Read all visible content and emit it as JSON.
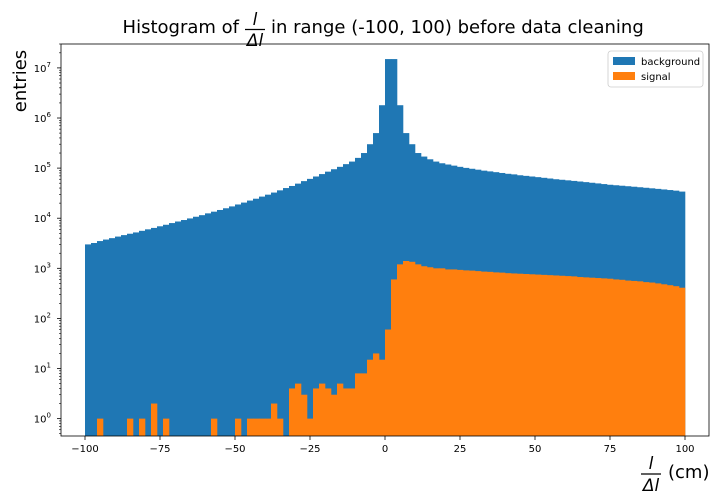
{
  "chart_data": {
    "type": "bar",
    "title_prefix": "Histogram of",
    "title_fraction": {
      "numerator": "l",
      "denominator": "Δl"
    },
    "title_suffix": "in range (-100, 100) before data cleaning",
    "xlabel_fraction": {
      "numerator": "l",
      "denominator": "Δl"
    },
    "xlabel_unit": "(cm)",
    "ylabel": "entries",
    "xlim": [
      -108,
      108
    ],
    "ylim": [
      0.45,
      30000000
    ],
    "yscale": "log",
    "xticks": [
      -100,
      -75,
      -50,
      -25,
      0,
      25,
      50,
      75,
      100
    ],
    "xtick_labels": [
      "−100",
      "−75",
      "−50",
      "−25",
      "0",
      "25",
      "50",
      "75",
      "100"
    ],
    "yticks": [
      1,
      10,
      100,
      1000,
      10000,
      100000,
      1000000,
      10000000
    ],
    "ytick_labels": [
      {
        "base": "10",
        "exp": "0"
      },
      {
        "base": "10",
        "exp": "1"
      },
      {
        "base": "10",
        "exp": "2"
      },
      {
        "base": "10",
        "exp": "3"
      },
      {
        "base": "10",
        "exp": "4"
      },
      {
        "base": "10",
        "exp": "5"
      },
      {
        "base": "10",
        "exp": "6"
      },
      {
        "base": "10",
        "exp": "7"
      }
    ],
    "legend_position": "top-right",
    "bin_edges_range": [
      -100,
      100
    ],
    "bin_count": 100,
    "series": [
      {
        "name": "background",
        "color": "#1f77b4",
        "values": [
          3000,
          3200,
          3500,
          3750,
          4000,
          4300,
          4600,
          4900,
          5200,
          5600,
          6000,
          6400,
          6900,
          7400,
          8000,
          8600,
          9200,
          9900,
          10700,
          11500,
          12500,
          13500,
          14600,
          15800,
          17200,
          18800,
          20500,
          22500,
          24500,
          27000,
          29500,
          32500,
          36000,
          40000,
          44000,
          49000,
          55000,
          61000,
          68000,
          76000,
          85000,
          95000,
          106000,
          120000,
          135000,
          160000,
          200000,
          300000,
          500000,
          1800000,
          15000000,
          15000000,
          1800000,
          500000,
          300000,
          200000,
          170000,
          150000,
          135000,
          125000,
          118000,
          112000,
          106000,
          101000,
          97000,
          93000,
          89000,
          86000,
          83000,
          80000,
          77000,
          75000,
          72000,
          70000,
          68000,
          66000,
          64000,
          62000,
          60000,
          58500,
          57000,
          55500,
          54000,
          52500,
          51000,
          49500,
          48000,
          46500,
          45500,
          44500,
          43500,
          42500,
          41500,
          40500,
          39500,
          38500,
          37500,
          36500,
          35500,
          34000
        ]
      },
      {
        "name": "signal",
        "color": "#ff7f0e",
        "values": [
          0,
          0,
          1,
          0,
          0,
          0,
          0,
          1,
          0,
          1,
          0,
          2,
          0,
          1,
          0,
          0,
          0,
          0,
          0,
          0,
          0,
          1,
          0,
          0,
          0,
          1,
          0,
          1,
          1,
          1,
          1,
          2,
          1,
          0,
          4,
          5,
          3,
          1,
          4,
          5,
          4,
          3,
          5,
          4,
          4,
          8,
          8,
          15,
          20,
          15,
          60,
          600,
          1200,
          1400,
          1350,
          1200,
          1100,
          1050,
          1000,
          1000,
          950,
          950,
          930,
          910,
          900,
          880,
          860,
          850,
          830,
          820,
          800,
          790,
          780,
          770,
          760,
          750,
          740,
          730,
          720,
          710,
          700,
          690,
          670,
          660,
          650,
          640,
          630,
          620,
          600,
          590,
          570,
          560,
          550,
          530,
          520,
          500,
          480,
          460,
          440,
          410
        ]
      }
    ]
  }
}
